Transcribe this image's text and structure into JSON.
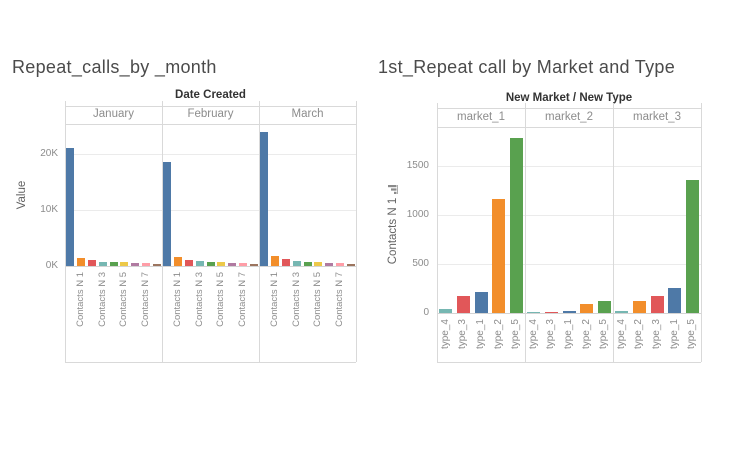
{
  "page": {
    "background": "#ffffff"
  },
  "palette": {
    "blue": "#4e79a7",
    "orange": "#f28e2b",
    "red": "#e15759",
    "teal": "#76b7b2",
    "green": "#59a14f",
    "yellow": "#edc949",
    "purple": "#b07aa1",
    "pink": "#ff9da7",
    "brown": "#9c755f",
    "grid_line": "#ebebeb",
    "panel_border": "#d9d9d9",
    "axis_text": "#8c8c8c",
    "title_text": "#4b4b4b",
    "header_text": "#333333"
  },
  "chart_data": [
    {
      "type": "bar",
      "title": "Repeat_calls_by _month",
      "column_field_label": "Date Created",
      "panels": [
        "January",
        "February",
        "March"
      ],
      "ylabel": "Value",
      "yticks": [
        {
          "value": 0,
          "label": "0K"
        },
        {
          "value": 10000,
          "label": "10K"
        },
        {
          "value": 20000,
          "label": "20K"
        }
      ],
      "ylim": [
        0,
        25400
      ],
      "grid": true,
      "legend": "none",
      "categories": [
        "",
        "Contacts N 1",
        "",
        "Contacts N 3",
        "",
        "Contacts N 5",
        "",
        "Contacts N 7",
        ""
      ],
      "bar_colors": [
        "#4e79a7",
        "#f28e2b",
        "#e15759",
        "#76b7b2",
        "#59a14f",
        "#edc949",
        "#b07aa1",
        "#ff9da7",
        "#9c755f"
      ],
      "series": [
        {
          "name": "January",
          "values": [
            21000,
            1400,
            1050,
            800,
            780,
            650,
            540,
            530,
            320
          ]
        },
        {
          "name": "February",
          "values": [
            18600,
            1550,
            1100,
            820,
            720,
            660,
            550,
            540,
            310
          ]
        },
        {
          "name": "March",
          "values": [
            24000,
            1700,
            1250,
            900,
            800,
            720,
            600,
            560,
            350
          ]
        }
      ]
    },
    {
      "type": "bar",
      "title": "1st_Repeat call by Market and Type",
      "column_field_label": "New Market / New Type",
      "panels": [
        "market_1",
        "market_2",
        "market_3"
      ],
      "ylabel": "Contacts N 1",
      "ylabel_icon": "sort-ascending-icon",
      "yticks": [
        {
          "value": 0,
          "label": "0"
        },
        {
          "value": 500,
          "label": "500"
        },
        {
          "value": 1000,
          "label": "1000"
        },
        {
          "value": 1500,
          "label": "1500"
        }
      ],
      "ylim": [
        0,
        1900
      ],
      "grid": true,
      "legend": "none",
      "type_colors": {
        "type_1": "#4e79a7",
        "type_2": "#f28e2b",
        "type_3": "#e15759",
        "type_4": "#76b7b2",
        "type_5": "#59a14f"
      },
      "series": [
        {
          "name": "market_1",
          "categories": [
            "type_4",
            "type_3",
            "type_1",
            "type_2",
            "type_5"
          ],
          "values": [
            40,
            170,
            210,
            1160,
            1790
          ]
        },
        {
          "name": "market_2",
          "categories": [
            "type_4",
            "type_3",
            "type_1",
            "type_2",
            "type_5"
          ],
          "values": [
            15,
            5,
            25,
            90,
            125
          ]
        },
        {
          "name": "market_3",
          "categories": [
            "type_4",
            "type_2",
            "type_3",
            "type_1",
            "type_5"
          ],
          "values": [
            20,
            120,
            170,
            260,
            1360
          ]
        }
      ]
    }
  ]
}
